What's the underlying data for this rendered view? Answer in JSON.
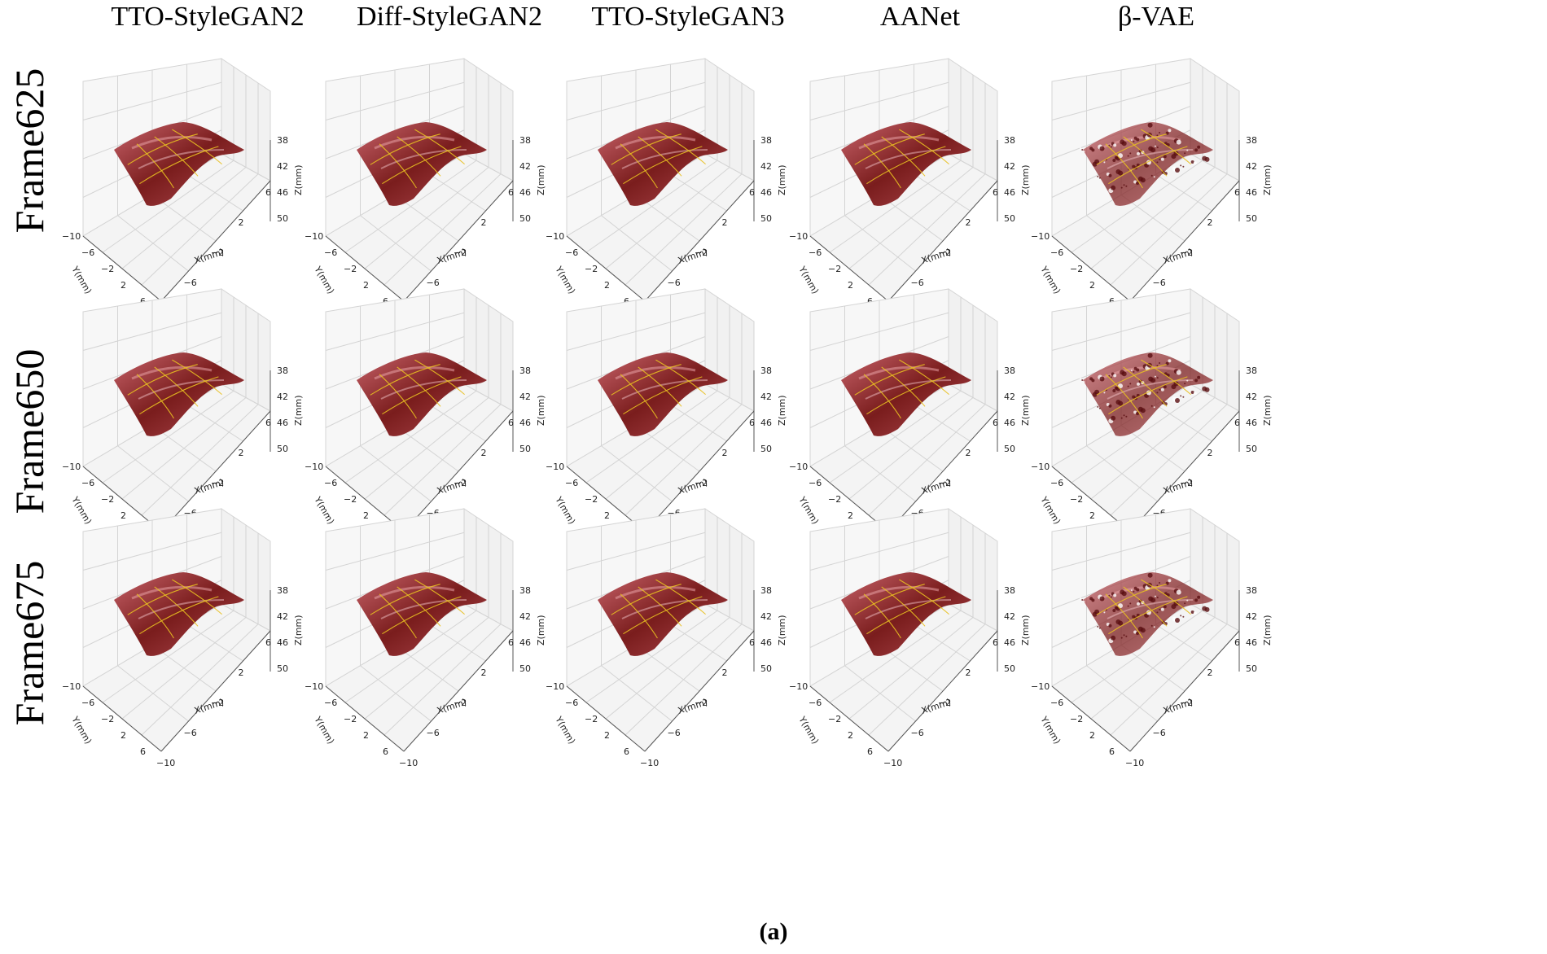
{
  "columns": [
    "TTO-StyleGAN2",
    "Diff-StyleGAN2",
    "TTO-StyleGAN3",
    "AANet",
    "β-VAE"
  ],
  "rows": [
    "Frame625",
    "Frame650",
    "Frame675"
  ],
  "axes": {
    "x_label": "X(mm)",
    "y_label": "Y(mm)",
    "z_label": "Z(mm)",
    "x_ticks": [
      "−10",
      "−6",
      "−2",
      "2",
      "6"
    ],
    "y_ticks": [
      "−10",
      "−6",
      "−2",
      "2",
      "6"
    ],
    "z_ticks": [
      "38",
      "42",
      "46",
      "50"
    ]
  },
  "colors": {
    "tissue_dark": "#7a1d1d",
    "tissue_light": "#c8636a",
    "mesh_lines": "#e8c020",
    "grid": "#d4d4d4"
  },
  "caption": "(a)"
}
